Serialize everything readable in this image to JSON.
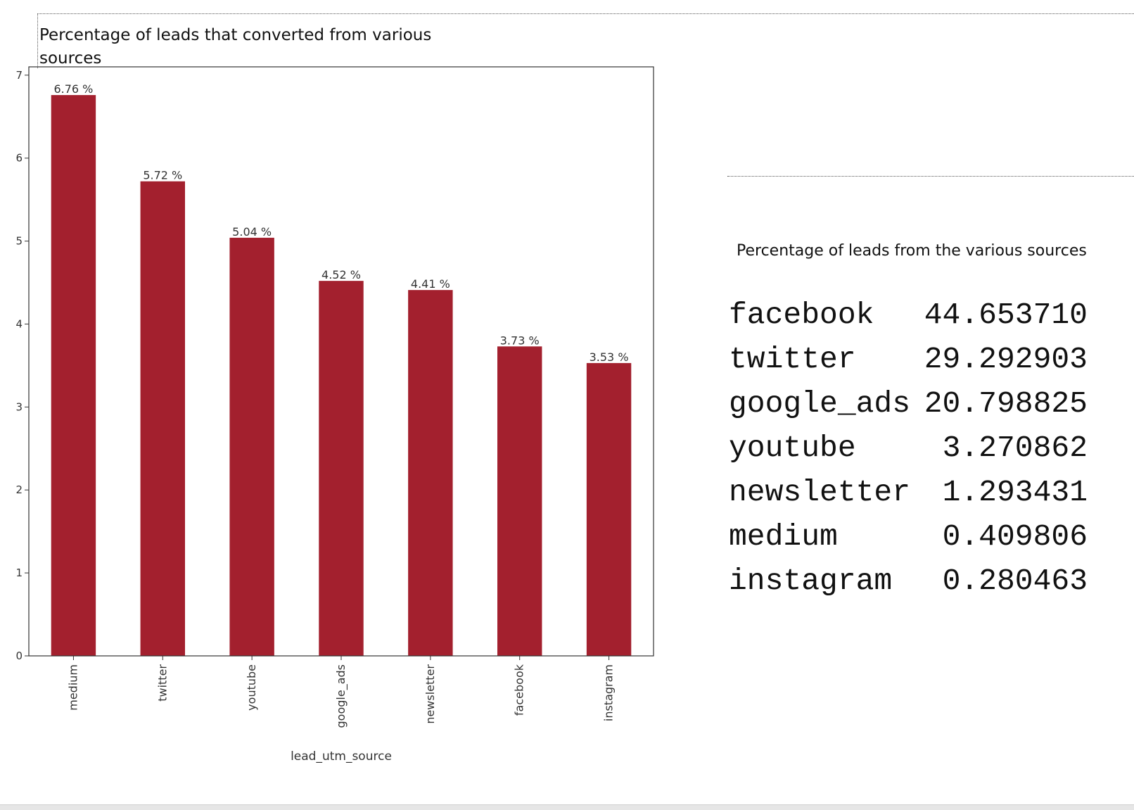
{
  "chart_data": {
    "type": "bar",
    "title": "Percentage of leads that converted from various sources",
    "xlabel": "lead_utm_source",
    "ylabel": "",
    "categories": [
      "medium",
      "twitter",
      "youtube",
      "google_ads",
      "newsletter",
      "facebook",
      "instagram"
    ],
    "values": [
      6.76,
      5.72,
      5.04,
      4.52,
      4.41,
      3.73,
      3.53
    ],
    "value_labels": [
      "6.76 %",
      "5.72 %",
      "5.04 %",
      "4.52 %",
      "4.41 %",
      "3.73 %",
      "3.53 %"
    ],
    "ylim": [
      0,
      7.1
    ],
    "yticks": [
      0,
      1,
      2,
      3,
      4,
      5,
      6,
      7
    ],
    "bar_color": "#a3202e",
    "grid": false,
    "legend": "none"
  },
  "table": {
    "title": "Percentage of leads from the various sources",
    "rows": [
      {
        "name": "facebook",
        "value": "44.653710"
      },
      {
        "name": "twitter",
        "value": "29.292903"
      },
      {
        "name": "google_ads",
        "value": "20.798825"
      },
      {
        "name": "youtube",
        "value": "3.270862"
      },
      {
        "name": "newsletter",
        "value": "1.293431"
      },
      {
        "name": "medium",
        "value": "0.409806"
      },
      {
        "name": "instagram",
        "value": "0.280463"
      }
    ]
  }
}
